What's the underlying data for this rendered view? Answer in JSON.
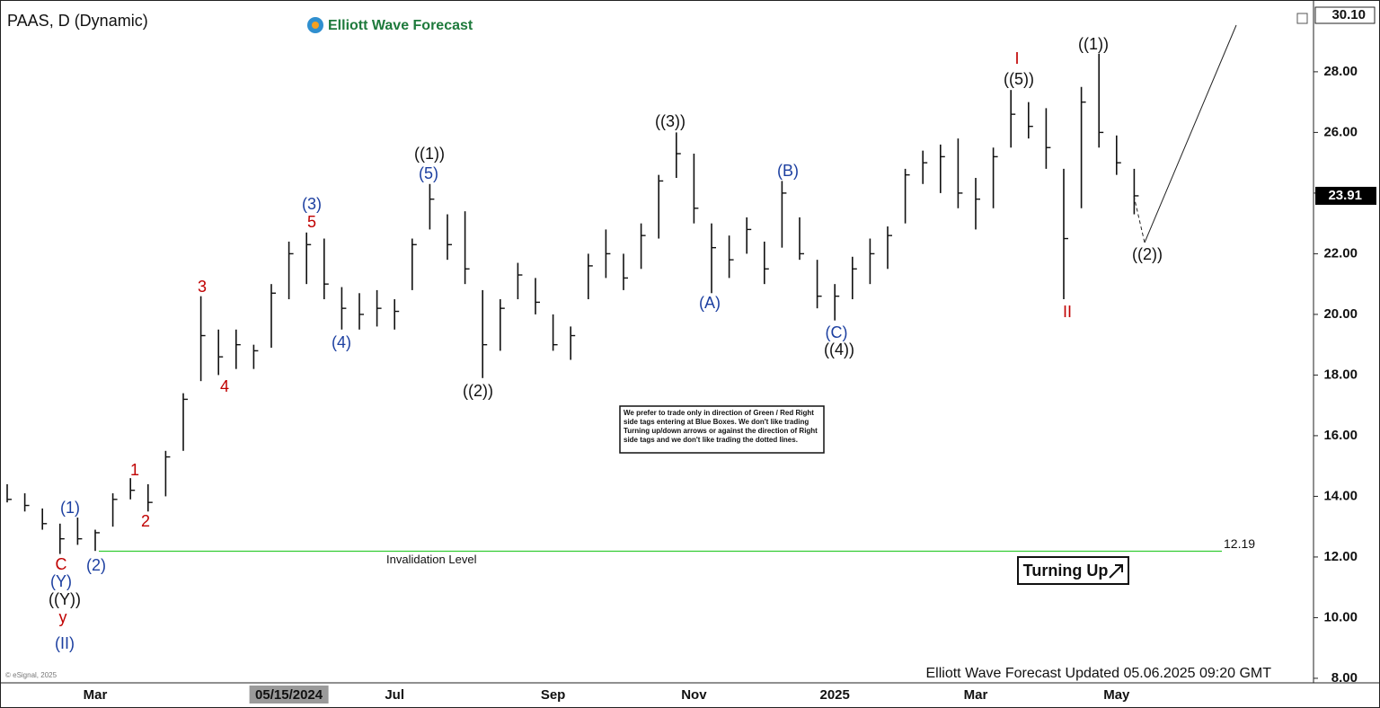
{
  "chart_data": {
    "type": "ohlc",
    "title": "PAAS, D (Dynamic)",
    "brand": "Elliott Wave Forecast",
    "footer": "Elliott Wave Forecast Updated 05.06.2025 09:20 GMT",
    "copyright": "© eSignal, 2025",
    "color": "#111111",
    "categories": [
      null,
      null,
      null,
      null,
      null,
      "Mar",
      null,
      null,
      null,
      null,
      null,
      null,
      null,
      null,
      null,
      null,
      "05/15/2024",
      null,
      null,
      null,
      null,
      null,
      "Jul",
      null,
      null,
      null,
      null,
      null,
      null,
      null,
      null,
      "Sep",
      null,
      null,
      null,
      null,
      null,
      null,
      null,
      "Nov",
      null,
      null,
      null,
      null,
      null,
      null,
      null,
      "2025",
      null,
      null,
      null,
      null,
      null,
      null,
      null,
      "Mar",
      null,
      null,
      null,
      null,
      null,
      null,
      null,
      "May",
      null
    ],
    "high": [
      14.4,
      14.1,
      13.6,
      13.1,
      13.3,
      12.9,
      14.1,
      14.6,
      14.4,
      15.5,
      17.4,
      20.6,
      19.5,
      19.5,
      19.0,
      21.0,
      22.4,
      22.7,
      22.5,
      20.9,
      20.7,
      20.8,
      20.5,
      22.5,
      24.3,
      23.3,
      23.4,
      20.8,
      20.5,
      21.7,
      21.2,
      20.0,
      19.6,
      22.0,
      22.8,
      22.0,
      23.0,
      24.6,
      26.0,
      25.3,
      23.0,
      22.6,
      23.2,
      22.4,
      24.4,
      23.2,
      21.8,
      21.0,
      21.9,
      22.5,
      22.9,
      24.8,
      25.4,
      25.6,
      25.8,
      24.5,
      25.5,
      27.4,
      27.0,
      26.8,
      24.8,
      27.5,
      28.6,
      25.9,
      24.8
    ],
    "low": [
      13.8,
      13.5,
      12.9,
      12.1,
      12.4,
      12.2,
      13.0,
      13.9,
      13.5,
      14.0,
      15.5,
      17.8,
      18.0,
      18.2,
      18.2,
      18.9,
      20.5,
      21.0,
      20.5,
      19.5,
      19.5,
      19.6,
      19.5,
      20.8,
      22.8,
      21.8,
      21.0,
      17.9,
      18.8,
      20.5,
      20.0,
      18.8,
      18.5,
      20.5,
      21.2,
      20.8,
      21.5,
      22.5,
      24.5,
      23.0,
      20.7,
      21.2,
      22.0,
      21.0,
      22.2,
      21.8,
      20.2,
      19.8,
      20.5,
      21.0,
      21.5,
      23.0,
      24.3,
      24.0,
      23.5,
      22.8,
      23.5,
      25.5,
      25.8,
      24.8,
      20.5,
      23.5,
      25.5,
      24.6,
      23.3
    ],
    "close": [
      13.9,
      13.7,
      13.1,
      12.6,
      12.6,
      12.8,
      13.9,
      14.2,
      13.8,
      15.3,
      17.2,
      19.3,
      18.6,
      19.0,
      18.8,
      20.7,
      22.0,
      22.3,
      21.0,
      20.2,
      20.0,
      20.2,
      20.1,
      22.3,
      23.8,
      22.3,
      21.5,
      19.0,
      20.2,
      21.3,
      20.4,
      19.0,
      19.3,
      21.6,
      22.0,
      21.2,
      22.6,
      24.4,
      25.3,
      23.5,
      22.2,
      21.8,
      22.8,
      21.5,
      24.0,
      22.0,
      20.6,
      20.6,
      21.5,
      22.0,
      22.6,
      24.6,
      25.0,
      25.2,
      24.0,
      23.8,
      25.2,
      26.6,
      26.2,
      25.5,
      22.5,
      27.0,
      26.0,
      25.0,
      23.91
    ],
    "ylim": [
      7.85,
      30.13
    ],
    "yticks": [
      {
        "value": 8,
        "label": "8.00"
      },
      {
        "value": 10,
        "label": "10.00"
      },
      {
        "value": 12,
        "label": "12.00"
      },
      {
        "value": 14,
        "label": "14.00"
      },
      {
        "value": 16,
        "label": "16.00"
      },
      {
        "value": 18,
        "label": "18.00"
      },
      {
        "value": 20,
        "label": "20.00"
      },
      {
        "value": 22,
        "label": "22.00"
      },
      {
        "value": 24,
        "label": "24.00"
      },
      {
        "value": 26,
        "label": "26.00"
      },
      {
        "value": 28,
        "label": "28.00"
      }
    ],
    "top_label": {
      "value": 30.1,
      "label": "30.10"
    },
    "invalidation": {
      "value": 12.19,
      "label": "Invalidation Level",
      "color": "#33cc33"
    },
    "signal": "Turning Up",
    "notice": [
      "We prefer to trade only in direction of Green / Red Right",
      "side tags entering at Blue Boxes. We don't like trading",
      "Turning up/down arrows or against the direction of Right",
      "side tags and we don't like trading the dotted lines."
    ],
    "annotations": [
      {
        "text": "C",
        "color": "#c00000"
      },
      {
        "text": "(Y)",
        "color": "#1c3fa0"
      },
      {
        "text": "((Y))",
        "color": "#111111"
      },
      {
        "text": "y",
        "color": "#c00000"
      },
      {
        "text": "(II)",
        "color": "#1c3fa0"
      },
      {
        "text": "(1)",
        "color": "#1c3fa0"
      },
      {
        "text": "(2)",
        "color": "#1c3fa0"
      },
      {
        "text": "1",
        "color": "#c00000"
      },
      {
        "text": "2",
        "color": "#c00000"
      },
      {
        "text": "3",
        "color": "#c00000"
      },
      {
        "text": "4",
        "color": "#c00000"
      },
      {
        "text": "5",
        "color": "#c00000"
      },
      {
        "text": "(3)",
        "color": "#1c3fa0"
      },
      {
        "text": "(4)",
        "color": "#1c3fa0"
      },
      {
        "text": "(5)",
        "color": "#1c3fa0"
      },
      {
        "text": "((1))",
        "color": "#111111"
      },
      {
        "text": "((2))",
        "color": "#111111"
      },
      {
        "text": "((3))",
        "color": "#111111"
      },
      {
        "text": "(A)",
        "color": "#1c3fa0"
      },
      {
        "text": "(B)",
        "color": "#1c3fa0"
      },
      {
        "text": "(C)",
        "color": "#1c3fa0"
      },
      {
        "text": "((4))",
        "color": "#111111"
      },
      {
        "text": "I",
        "color": "#c00000"
      },
      {
        "text": "((5))",
        "color": "#111111"
      },
      {
        "text": "((1))",
        "color": "#111111"
      },
      {
        "text": "((2))",
        "color": "#111111"
      },
      {
        "text": "II",
        "color": "#c00000"
      }
    ]
  }
}
